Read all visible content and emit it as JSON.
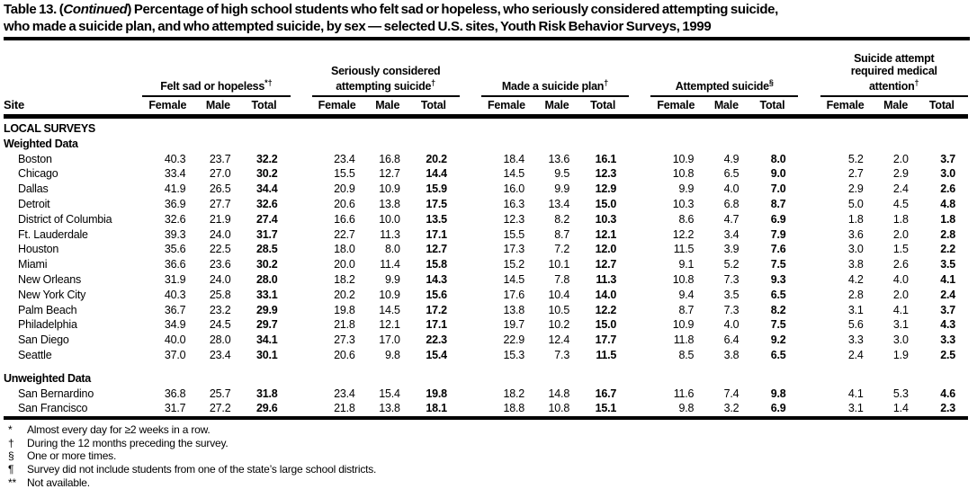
{
  "title": {
    "line1_pre": "Table 13. (",
    "line1_continued": "Continued",
    "line1_post": ") Percentage of high school students who felt sad or hopeless, who seriously considered attempting suicide,",
    "line2": "who made a suicide plan, and who attempted suicide, by sex — selected U.S. sites, Youth Risk Behavior Surveys, 1999"
  },
  "table": {
    "site_header": "Site",
    "groups": [
      {
        "label": "Felt sad or hopeless",
        "marker": "*†"
      },
      {
        "label": "Seriously considered attempting suicide",
        "marker": "†"
      },
      {
        "label": "Made a suicide plan",
        "marker": "†"
      },
      {
        "label": "Attempted suicide",
        "marker": "§"
      },
      {
        "label": "Suicide attempt required medical attention",
        "marker": "†"
      }
    ],
    "subheaders": [
      "Female",
      "Male",
      "Total"
    ],
    "sections": [
      {
        "headings": [
          "LOCAL SURVEYS",
          "Weighted Data"
        ],
        "rows": [
          {
            "site": "Boston",
            "values": [
              "40.3",
              "23.7",
              "32.2",
              "23.4",
              "16.8",
              "20.2",
              "18.4",
              "13.6",
              "16.1",
              "10.9",
              "4.9",
              "8.0",
              "5.2",
              "2.0",
              "3.7"
            ]
          },
          {
            "site": "Chicago",
            "values": [
              "33.4",
              "27.0",
              "30.2",
              "15.5",
              "12.7",
              "14.4",
              "14.5",
              "9.5",
              "12.3",
              "10.8",
              "6.5",
              "9.0",
              "2.7",
              "2.9",
              "3.0"
            ]
          },
          {
            "site": "Dallas",
            "values": [
              "41.9",
              "26.5",
              "34.4",
              "20.9",
              "10.9",
              "15.9",
              "16.0",
              "9.9",
              "12.9",
              "9.9",
              "4.0",
              "7.0",
              "2.9",
              "2.4",
              "2.6"
            ]
          },
          {
            "site": "Detroit",
            "values": [
              "36.9",
              "27.7",
              "32.6",
              "20.6",
              "13.8",
              "17.5",
              "16.3",
              "13.4",
              "15.0",
              "10.3",
              "6.8",
              "8.7",
              "5.0",
              "4.5",
              "4.8"
            ]
          },
          {
            "site": "District of Columbia",
            "values": [
              "32.6",
              "21.9",
              "27.4",
              "16.6",
              "10.0",
              "13.5",
              "12.3",
              "8.2",
              "10.3",
              "8.6",
              "4.7",
              "6.9",
              "1.8",
              "1.8",
              "1.8"
            ]
          },
          {
            "site": "Ft. Lauderdale",
            "values": [
              "39.3",
              "24.0",
              "31.7",
              "22.7",
              "11.3",
              "17.1",
              "15.5",
              "8.7",
              "12.1",
              "12.2",
              "3.4",
              "7.9",
              "3.6",
              "2.0",
              "2.8"
            ]
          },
          {
            "site": "Houston",
            "values": [
              "35.6",
              "22.5",
              "28.5",
              "18.0",
              "8.0",
              "12.7",
              "17.3",
              "7.2",
              "12.0",
              "11.5",
              "3.9",
              "7.6",
              "3.0",
              "1.5",
              "2.2"
            ]
          },
          {
            "site": "Miami",
            "values": [
              "36.6",
              "23.6",
              "30.2",
              "20.0",
              "11.4",
              "15.8",
              "15.2",
              "10.1",
              "12.7",
              "9.1",
              "5.2",
              "7.5",
              "3.8",
              "2.6",
              "3.5"
            ]
          },
          {
            "site": "New Orleans",
            "values": [
              "31.9",
              "24.0",
              "28.0",
              "18.2",
              "9.9",
              "14.3",
              "14.5",
              "7.8",
              "11.3",
              "10.8",
              "7.3",
              "9.3",
              "4.2",
              "4.0",
              "4.1"
            ]
          },
          {
            "site": "New York City",
            "values": [
              "40.3",
              "25.8",
              "33.1",
              "20.2",
              "10.9",
              "15.6",
              "17.6",
              "10.4",
              "14.0",
              "9.4",
              "3.5",
              "6.5",
              "2.8",
              "2.0",
              "2.4"
            ]
          },
          {
            "site": "Palm Beach",
            "values": [
              "36.7",
              "23.2",
              "29.9",
              "19.8",
              "14.5",
              "17.2",
              "13.8",
              "10.5",
              "12.2",
              "8.7",
              "7.3",
              "8.2",
              "3.1",
              "4.1",
              "3.7"
            ]
          },
          {
            "site": "Philadelphia",
            "values": [
              "34.9",
              "24.5",
              "29.7",
              "21.8",
              "12.1",
              "17.1",
              "19.7",
              "10.2",
              "15.0",
              "10.9",
              "4.0",
              "7.5",
              "5.6",
              "3.1",
              "4.3"
            ]
          },
          {
            "site": "San Diego",
            "values": [
              "40.0",
              "28.0",
              "34.1",
              "27.3",
              "17.0",
              "22.3",
              "22.9",
              "12.4",
              "17.7",
              "11.8",
              "6.4",
              "9.2",
              "3.3",
              "3.0",
              "3.3"
            ]
          },
          {
            "site": "Seattle",
            "values": [
              "37.0",
              "23.4",
              "30.1",
              "20.6",
              "9.8",
              "15.4",
              "15.3",
              "7.3",
              "11.5",
              "8.5",
              "3.8",
              "6.5",
              "2.4",
              "1.9",
              "2.5"
            ]
          }
        ]
      },
      {
        "headings": [
          "Unweighted Data"
        ],
        "rows": [
          {
            "site": "San Bernardino",
            "values": [
              "36.8",
              "25.7",
              "31.8",
              "23.4",
              "15.4",
              "19.8",
              "18.2",
              "14.8",
              "16.7",
              "11.6",
              "7.4",
              "9.8",
              "4.1",
              "5.3",
              "4.6"
            ]
          },
          {
            "site": "San Francisco",
            "values": [
              "31.7",
              "27.2",
              "29.6",
              "21.8",
              "13.8",
              "18.1",
              "18.8",
              "10.8",
              "15.1",
              "9.8",
              "3.2",
              "6.9",
              "3.1",
              "1.4",
              "2.3"
            ]
          }
        ]
      }
    ]
  },
  "footnotes": [
    {
      "marker": "*",
      "text": "Almost every day for ≥2 weeks in a row."
    },
    {
      "marker": "†",
      "text": "During the 12 months preceding the survey."
    },
    {
      "marker": "§",
      "text": "One or more times."
    },
    {
      "marker": "¶",
      "text": "Survey did not include students from one of the state’s large school districts."
    },
    {
      "marker": "**",
      "text": "Not available."
    }
  ]
}
